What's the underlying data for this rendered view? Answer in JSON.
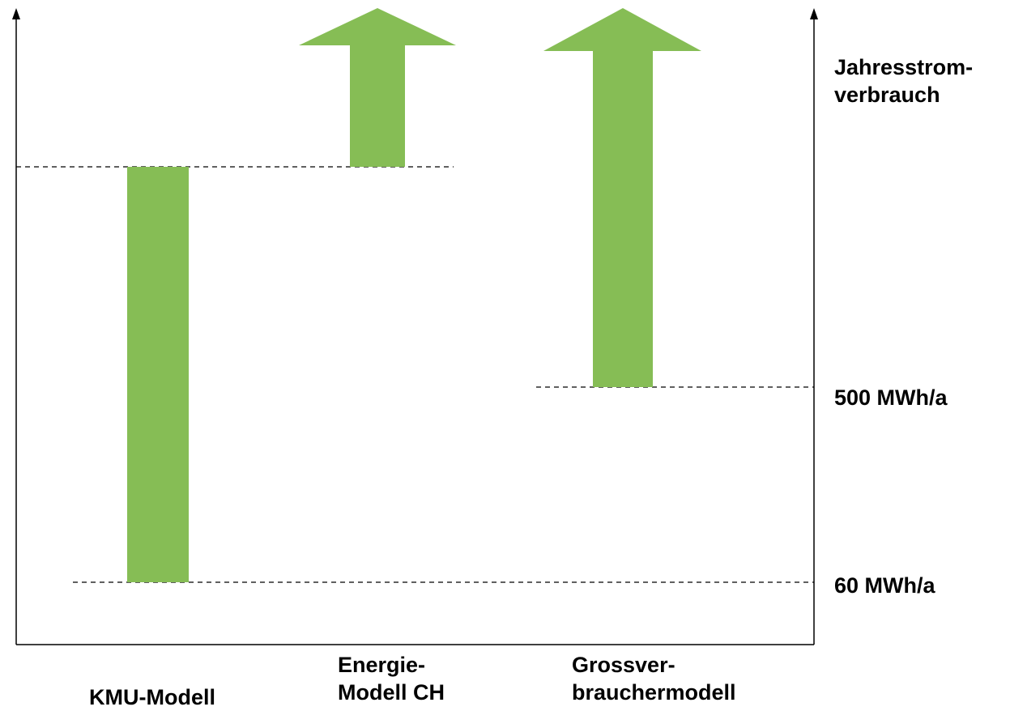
{
  "axis_title": [
    "Jahresstrom-",
    "verbrauch"
  ],
  "levels": {
    "upper": "500 MWh/a",
    "lower": "60 MWh/a"
  },
  "models": [
    {
      "name": [
        "KMU-Modell"
      ]
    },
    {
      "name": [
        "Energie-",
        "Modell CH"
      ]
    },
    {
      "name": [
        "Grossver-",
        "brauchermodell"
      ]
    }
  ],
  "colors": {
    "bar": "#86bd55",
    "line": "#000000"
  }
}
